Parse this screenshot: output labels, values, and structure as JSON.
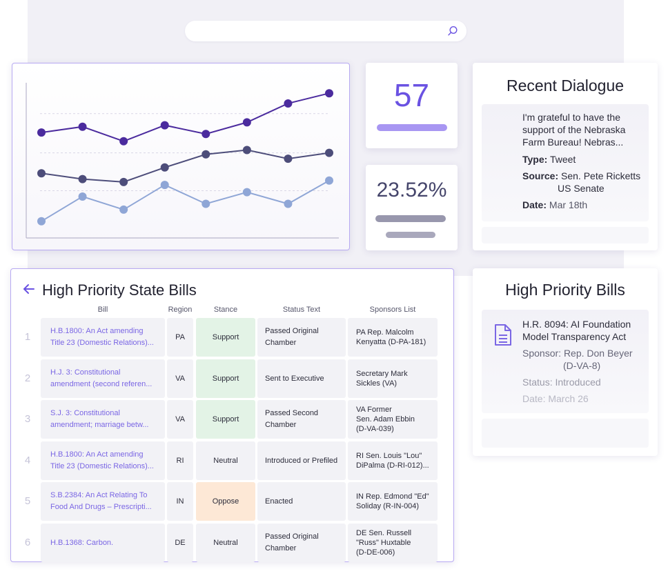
{
  "search": {
    "placeholder": ""
  },
  "chart_data": {
    "type": "line",
    "x": [
      1,
      2,
      3,
      4,
      5,
      6,
      7,
      8
    ],
    "series": [
      {
        "values": [
          72,
          76,
          66,
          77,
          71,
          79,
          92,
          99
        ],
        "color": "#4b2b9e"
      },
      {
        "values": [
          44,
          40,
          38,
          48,
          57,
          60,
          54,
          58
        ],
        "color": "#4d4d7a"
      },
      {
        "values": [
          11,
          28,
          19,
          36,
          23,
          31,
          23,
          39
        ],
        "color": "#8fa6d6"
      }
    ],
    "ylim": [
      0,
      110
    ],
    "grid": true,
    "gridlines": [
      32,
      58,
      85
    ]
  },
  "stat1": {
    "value": "57",
    "bar_color": "#a896f2"
  },
  "stat2": {
    "value": "23.52%"
  },
  "dialogue": {
    "title": "Recent Dialogue",
    "text": "I'm grateful to have the support of the Nebraska Farm Bureau! Nebras...",
    "type_label": "Type:",
    "type_value": "Tweet",
    "source_label": "Source:",
    "source_value_1": "Sen. Pete Ricketts",
    "source_value_2": "US Senate",
    "date_label": "Date:",
    "date_value": "Mar 18th"
  },
  "hpb": {
    "title": "High Priority Bills",
    "bill": "H.R. 8094: AI Foundation Model Transparency Act",
    "sponsor_label": "Sponsor:",
    "sponsor_value_1": "Rep. Don Beyer",
    "sponsor_value_2": "(D-VA-8)",
    "status_label": "Status:",
    "status_value": "Introduced",
    "date_label": "Date:",
    "date_value": "March 26"
  },
  "table": {
    "title": "High Priority State Bills",
    "columns": [
      "Bill",
      "Region",
      "Stance",
      "Status Text",
      "Sponsors List"
    ],
    "rows": [
      {
        "num": "1",
        "bill": "H.B.1800: An Act amending\nTitle 23 (Domestic Relations)...",
        "region": "PA",
        "stance": "Support",
        "status": "Passed Original\nChamber",
        "sponsor": "PA Rep. Malcolm\nKenyatta (D-PA-181)"
      },
      {
        "num": "2",
        "bill": "H.J. 3: Constitutional\namendment (second referen...",
        "region": "VA",
        "stance": "Support",
        "status": "Sent to Executive",
        "sponsor": "Secretary Mark\nSickles (VA)"
      },
      {
        "num": "3",
        "bill": "S.J. 3: Constitutional\namendment; marriage betw...",
        "region": "VA",
        "stance": "Support",
        "status": "Passed Second\nChamber",
        "sponsor": "VA Former\nSen. Adam Ebbin\n(D-VA-039)"
      },
      {
        "num": "4",
        "bill": "H.B.1800: An Act amending\nTitle 23 (Domestic Relations)...",
        "region": "RI",
        "stance": "Neutral",
        "status": "Introduced or Prefiled",
        "sponsor": "RI Sen. Louis \"Lou\"\nDiPalma (D-RI-012)..."
      },
      {
        "num": "5",
        "bill": "S.B.2384: An Act Relating To\nFood And Drugs – Prescripti...",
        "region": "IN",
        "stance": "Oppose",
        "status": "Enacted",
        "sponsor": "IN Rep. Edmond \"Ed\"\nSoliday (R-IN-004)"
      },
      {
        "num": "6",
        "bill": "H.B.1368: Carbon.",
        "region": "DE",
        "stance": "Neutral",
        "status": "Passed Original\nChamber",
        "sponsor": "DE Sen. Russell\n\"Russ\" Huxtable\n(D-DE-006)"
      }
    ],
    "stance_colors": {
      "Support": "#e3f3e6",
      "Neutral": "#f2f2f6",
      "Oppose": "#fde8d6"
    }
  }
}
